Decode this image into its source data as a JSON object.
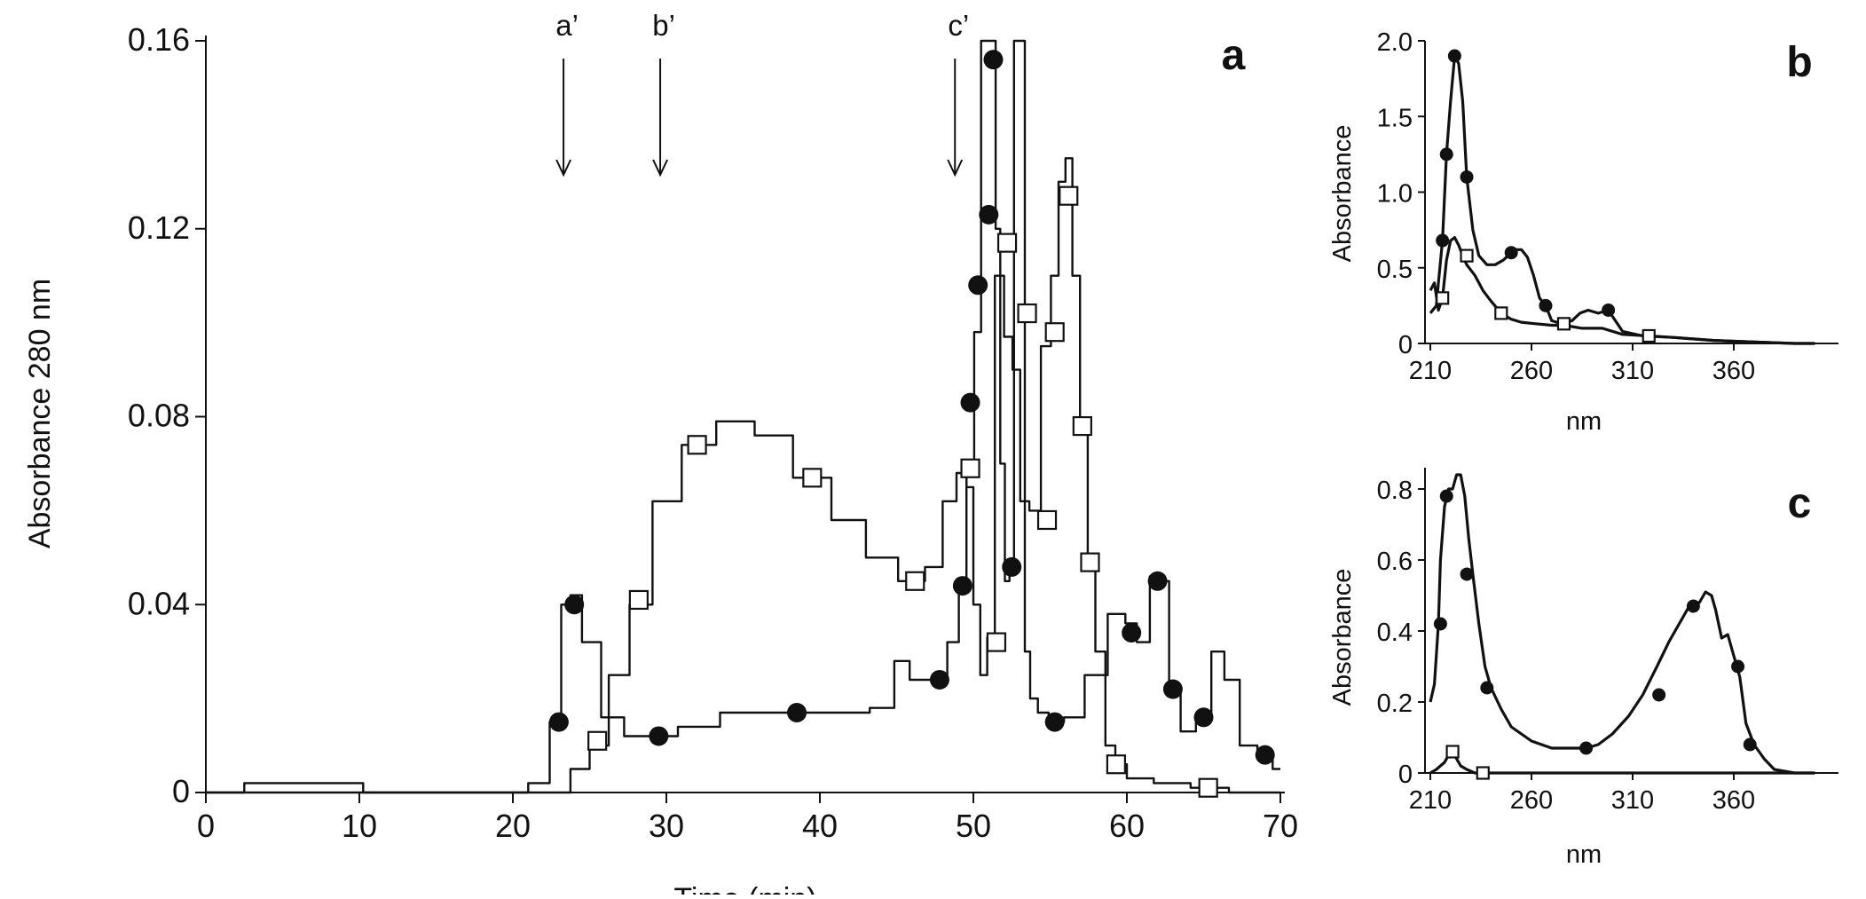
{
  "chart_data": [
    {
      "panel": "a",
      "type": "line",
      "xlabel": "Time (min)",
      "ylabel": "Absorbance 280 nm",
      "xlim": [
        0,
        70
      ],
      "ylim": [
        0,
        0.16
      ],
      "xticks": [
        "0",
        "10",
        "20",
        "30",
        "40",
        "50",
        "60",
        "70"
      ],
      "yticks": [
        "0",
        "0.04",
        "0.08",
        "0.12",
        "0.16"
      ],
      "arrows": [
        {
          "label": "a’",
          "x": 23.3
        },
        {
          "label": "b’",
          "x": 29.6
        },
        {
          "label": "c’",
          "x": 48.8
        }
      ],
      "series": [
        {
          "marker": "circle",
          "x": [
            0,
            5,
            7,
            9.5,
            11,
            15,
            20,
            22,
            22.8,
            23.5,
            24,
            25,
            26.5,
            28,
            29.5,
            32,
            35,
            38.5,
            42,
            44.5,
            45.2,
            46.5,
            47.8,
            48.8,
            49.3,
            49.8,
            50.3,
            50.7,
            51.0,
            51.3,
            51.6,
            51.9,
            52.2,
            52.5,
            52.8,
            53.2,
            53.5,
            53.9,
            54.5,
            55.3,
            56.5,
            58,
            59.5,
            60.3,
            61,
            62,
            62.5,
            63,
            64,
            65,
            66,
            66.7,
            68,
            69,
            70
          ],
          "y": [
            0,
            0.002,
            0.002,
            0.002,
            0,
            0,
            0,
            0.002,
            0.015,
            0.04,
            0.042,
            0.032,
            0.016,
            0.012,
            0.012,
            0.014,
            0.017,
            0.017,
            0.017,
            0.018,
            0.028,
            0.024,
            0.024,
            0.032,
            0.044,
            0.07,
            0.098,
            0.16,
            0.16,
            0.16,
            0.12,
            0.07,
            0.045,
            0.048,
            0.16,
            0.16,
            0.03,
            0.02,
            0.017,
            0.015,
            0.016,
            0.025,
            0.038,
            0.036,
            0.032,
            0.046,
            0.045,
            0.022,
            0.013,
            0.016,
            0.03,
            0.024,
            0.01,
            0.008,
            0.005
          ],
          "marker_x": [
            23.0,
            24.0,
            29.5,
            38.5,
            47.8,
            49.3,
            49.8,
            50.3,
            51.0,
            51.3,
            52.5,
            55.3,
            60.3,
            62.0,
            63.0,
            65.0,
            69.0
          ],
          "marker_y": [
            0.015,
            0.04,
            0.012,
            0.017,
            0.024,
            0.044,
            0.083,
            0.108,
            0.123,
            0.156,
            0.048,
            0.015,
            0.034,
            0.045,
            0.022,
            0.016,
            0.008
          ]
        },
        {
          "marker": "square",
          "x": [
            0,
            20,
            23,
            24.5,
            25.5,
            27,
            28.2,
            30,
            32,
            34.5,
            37,
            39.5,
            42,
            44,
            46.2,
            47.5,
            48.5,
            49.3,
            49.8,
            50.2,
            50.7,
            51.1,
            51.7,
            52.3,
            52.8,
            53.3,
            54,
            54.8,
            55.3,
            55.8,
            56.2,
            56.7,
            57.2,
            57.7,
            58.2,
            59,
            59.5,
            60.5,
            63,
            65.3,
            68,
            70
          ],
          "y": [
            0,
            0,
            0,
            0.005,
            0.01,
            0.025,
            0.04,
            0.062,
            0.074,
            0.079,
            0.076,
            0.067,
            0.058,
            0.05,
            0.045,
            0.048,
            0.062,
            0.068,
            0.065,
            0.04,
            0.025,
            0.033,
            0.11,
            0.097,
            0.09,
            0.062,
            0.06,
            0.095,
            0.11,
            0.13,
            0.135,
            0.11,
            0.077,
            0.049,
            0.03,
            0.01,
            0.006,
            0.003,
            0.002,
            0.001,
            0,
            0
          ],
          "marker_x": [
            25.5,
            28.2,
            32.0,
            39.5,
            46.2,
            49.8,
            51.5,
            52.2,
            53.5,
            54.8,
            55.3,
            56.2,
            57.1,
            57.6,
            59.3,
            65.3
          ],
          "marker_y": [
            0.011,
            0.041,
            0.074,
            0.067,
            0.045,
            0.069,
            0.032,
            0.117,
            0.102,
            0.058,
            0.098,
            0.127,
            0.078,
            0.049,
            0.006,
            0.001
          ]
        }
      ]
    },
    {
      "panel": "b",
      "type": "line",
      "xlabel": "nm",
      "ylabel": "Absorbance",
      "xlim": [
        210,
        410
      ],
      "ylim": [
        0,
        2.0
      ],
      "xticks": [
        "210",
        "260",
        "310",
        "360"
      ],
      "yticks": [
        "0",
        "0.5",
        "1.0",
        "1.5",
        "2.0"
      ],
      "series": [
        {
          "marker": "circle",
          "x": [
            210,
            213,
            214,
            216,
            218,
            220,
            222,
            224,
            226,
            228,
            231,
            234,
            238,
            242,
            246,
            250,
            252,
            255,
            258,
            261,
            264,
            267,
            270,
            275,
            280,
            284,
            288,
            293,
            298,
            305,
            315,
            330,
            350,
            370,
            390,
            400
          ],
          "y": [
            0.2,
            0.25,
            0.4,
            0.68,
            1.25,
            1.6,
            1.9,
            1.85,
            1.6,
            1.1,
            0.75,
            0.58,
            0.52,
            0.52,
            0.55,
            0.6,
            0.62,
            0.62,
            0.57,
            0.45,
            0.3,
            0.25,
            0.15,
            0.13,
            0.15,
            0.2,
            0.22,
            0.2,
            0.22,
            0.08,
            0.05,
            0.04,
            0.02,
            0.01,
            0,
            0
          ],
          "marker_x": [
            216,
            218,
            222,
            228,
            250,
            267,
            298
          ],
          "marker_y": [
            0.68,
            1.25,
            1.9,
            1.1,
            0.6,
            0.25,
            0.22
          ]
        },
        {
          "marker": "square",
          "x": [
            210,
            212,
            214,
            216,
            218,
            220,
            222,
            224,
            226,
            228,
            232,
            236,
            240,
            245,
            250,
            255,
            262,
            270,
            276,
            285,
            295,
            305,
            318,
            330,
            350,
            370,
            390,
            400
          ],
          "y": [
            0.35,
            0.4,
            0.22,
            0.3,
            0.55,
            0.68,
            0.7,
            0.65,
            0.58,
            0.52,
            0.45,
            0.35,
            0.28,
            0.2,
            0.16,
            0.14,
            0.13,
            0.12,
            0.12,
            0.1,
            0.1,
            0.06,
            0.05,
            0.04,
            0.02,
            0.01,
            0,
            0
          ],
          "marker_x": [
            216,
            228,
            245,
            276,
            318
          ],
          "marker_y": [
            0.3,
            0.58,
            0.2,
            0.13,
            0.05
          ]
        }
      ]
    },
    {
      "panel": "c",
      "type": "line",
      "xlabel": "nm",
      "ylabel": "Absorbance",
      "xlim": [
        210,
        410
      ],
      "ylim": [
        0,
        0.85
      ],
      "xticks": [
        "210",
        "260",
        "310",
        "360"
      ],
      "yticks": [
        "0",
        "0.2",
        "0.4",
        "0.6",
        "0.8"
      ],
      "series": [
        {
          "marker": "circle",
          "x": [
            210,
            212,
            214,
            215,
            217,
            219,
            221,
            223,
            225,
            227,
            229,
            231,
            234,
            237,
            240,
            245,
            250,
            260,
            270,
            280,
            287,
            293,
            300,
            308,
            315,
            322,
            328,
            334,
            338,
            340,
            343,
            346,
            349,
            351,
            354,
            357,
            360,
            363,
            366,
            370,
            375,
            380,
            390,
            400
          ],
          "y": [
            0.2,
            0.25,
            0.42,
            0.6,
            0.75,
            0.8,
            0.8,
            0.84,
            0.84,
            0.78,
            0.66,
            0.56,
            0.42,
            0.3,
            0.24,
            0.18,
            0.13,
            0.09,
            0.07,
            0.07,
            0.07,
            0.08,
            0.11,
            0.16,
            0.22,
            0.3,
            0.37,
            0.43,
            0.47,
            0.48,
            0.48,
            0.51,
            0.5,
            0.46,
            0.38,
            0.39,
            0.33,
            0.27,
            0.14,
            0.08,
            0.04,
            0.01,
            0,
            0
          ],
          "marker_x": [
            215,
            218,
            228,
            238,
            287,
            323,
            340,
            362,
            368
          ],
          "marker_y": [
            0.42,
            0.78,
            0.56,
            0.24,
            0.07,
            0.22,
            0.47,
            0.3,
            0.08
          ]
        },
        {
          "marker": "square",
          "x": [
            210,
            213,
            215,
            217,
            219,
            221,
            223,
            225,
            228,
            232,
            236,
            240,
            260,
            300,
            350,
            400
          ],
          "y": [
            0,
            0.01,
            0.02,
            0.03,
            0.05,
            0.06,
            0.04,
            0.02,
            0.01,
            0,
            0,
            0,
            0,
            0,
            0,
            0
          ],
          "marker_x": [
            221,
            236
          ],
          "marker_y": [
            0.06,
            0
          ]
        }
      ]
    }
  ]
}
